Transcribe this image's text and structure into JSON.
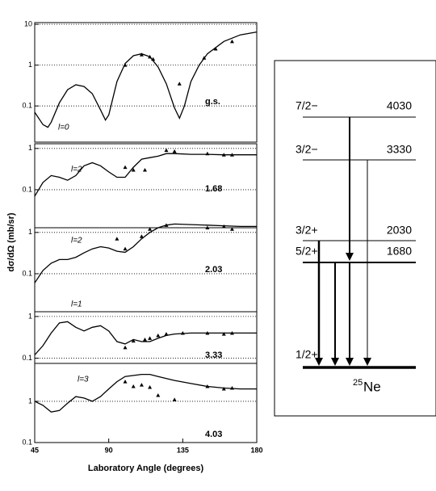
{
  "chart_data": [
    {
      "type": "line",
      "label": "g.s.",
      "annotation": "l=0",
      "log_y": true,
      "grid": true,
      "color": "#000000",
      "ylabel": "dσ/dΩ (mb/sr)",
      "xlim": [
        45,
        180
      ],
      "ylim": [
        0.013,
        11
      ],
      "yticks": [
        0.1,
        1,
        10
      ],
      "x": [
        45,
        50,
        53,
        55,
        60,
        65,
        70,
        75,
        80,
        85,
        88,
        90,
        95,
        100,
        105,
        110,
        115,
        120,
        125,
        130,
        133,
        136,
        140,
        145,
        150,
        160,
        170,
        180
      ],
      "values": [
        0.07,
        0.035,
        0.03,
        0.04,
        0.12,
        0.25,
        0.33,
        0.3,
        0.2,
        0.08,
        0.045,
        0.06,
        0.4,
        1.1,
        1.7,
        1.9,
        1.6,
        0.9,
        0.35,
        0.09,
        0.05,
        0.1,
        0.4,
        1.0,
        1.9,
        3.8,
        5.5,
        6.5
      ],
      "points_x": [
        100,
        110,
        115,
        117,
        133,
        148,
        155,
        165
      ],
      "points_values": [
        1.0,
        1.8,
        1.6,
        1.4,
        0.35,
        1.5,
        2.5,
        3.8
      ]
    },
    {
      "type": "line",
      "label": "1.68",
      "annotation": "l=2",
      "log_y": true,
      "grid": true,
      "color": "#000000",
      "xlim": [
        45,
        180
      ],
      "ylim": [
        0.012,
        1.3
      ],
      "yticks": [
        0.1,
        1
      ],
      "x": [
        45,
        50,
        55,
        60,
        65,
        70,
        75,
        80,
        85,
        90,
        95,
        100,
        105,
        110,
        115,
        120,
        125,
        130,
        140,
        150,
        160,
        170,
        180
      ],
      "values": [
        0.07,
        0.15,
        0.22,
        0.2,
        0.17,
        0.22,
        0.38,
        0.45,
        0.38,
        0.27,
        0.2,
        0.2,
        0.35,
        0.55,
        0.6,
        0.65,
        0.75,
        0.75,
        0.72,
        0.72,
        0.7,
        0.7,
        0.7
      ],
      "points_x": [
        100,
        105,
        112,
        125,
        130,
        150,
        160,
        165
      ],
      "points_values": [
        0.35,
        0.3,
        0.3,
        0.9,
        0.85,
        0.75,
        0.7,
        0.7
      ]
    },
    {
      "type": "line",
      "label": "2.03",
      "annotation": "l=2",
      "log_y": true,
      "grid": true,
      "color": "#000000",
      "xlim": [
        45,
        180
      ],
      "ylim": [
        0.012,
        1.3
      ],
      "yticks": [
        0.1,
        1
      ],
      "x": [
        45,
        50,
        55,
        60,
        65,
        70,
        75,
        80,
        85,
        90,
        95,
        100,
        105,
        110,
        115,
        120,
        125,
        130,
        140,
        150,
        160,
        170,
        180
      ],
      "values": [
        0.06,
        0.12,
        0.18,
        0.22,
        0.22,
        0.25,
        0.32,
        0.4,
        0.45,
        0.42,
        0.35,
        0.33,
        0.45,
        0.7,
        1.0,
        1.3,
        1.5,
        1.6,
        1.55,
        1.5,
        1.45,
        1.4,
        1.4
      ],
      "points_x": [
        95,
        100,
        110,
        115,
        125,
        150,
        160,
        165
      ],
      "points_values": [
        0.7,
        0.4,
        0.8,
        1.2,
        1.5,
        1.3,
        1.4,
        1.2
      ]
    },
    {
      "type": "line",
      "label": "3.33",
      "annotation": "l=1",
      "log_y": true,
      "grid": true,
      "color": "#000000",
      "xlim": [
        45,
        180
      ],
      "ylim": [
        0.075,
        1.3
      ],
      "yticks": [
        0.1,
        1
      ],
      "x": [
        45,
        50,
        55,
        60,
        65,
        70,
        75,
        80,
        85,
        90,
        95,
        100,
        105,
        110,
        115,
        120,
        125,
        130,
        140,
        150,
        160,
        170,
        180
      ],
      "values": [
        0.12,
        0.2,
        0.4,
        0.7,
        0.75,
        0.55,
        0.45,
        0.55,
        0.6,
        0.45,
        0.25,
        0.22,
        0.28,
        0.25,
        0.25,
        0.3,
        0.35,
        0.38,
        0.4,
        0.4,
        0.4,
        0.4,
        0.4
      ],
      "points_x": [
        100,
        105,
        112,
        115,
        120,
        125,
        135,
        150,
        160,
        165
      ],
      "points_values": [
        0.18,
        0.26,
        0.28,
        0.3,
        0.35,
        0.38,
        0.4,
        0.4,
        0.38,
        0.4
      ]
    },
    {
      "type": "line",
      "label": "4.03",
      "annotation": "l=3",
      "log_y": true,
      "grid": true,
      "color": "#000000",
      "xlabel": "Laboratory Angle (degrees)",
      "xlim": [
        45,
        180
      ],
      "ylim": [
        0.1,
        8.3
      ],
      "yticks": [
        0.1,
        1
      ],
      "xticks": [
        45,
        90,
        135,
        180
      ],
      "x": [
        45,
        50,
        55,
        60,
        65,
        70,
        75,
        80,
        85,
        90,
        95,
        100,
        110,
        115,
        120,
        130,
        140,
        150,
        160,
        170,
        180
      ],
      "values": [
        1.0,
        0.8,
        0.55,
        0.6,
        0.9,
        1.3,
        1.2,
        1.0,
        1.3,
        2.0,
        3.0,
        4.0,
        4.5,
        4.5,
        4.0,
        3.2,
        2.7,
        2.3,
        2.1,
        2.0,
        2.0
      ],
      "points_x": [
        100,
        105,
        110,
        115,
        120,
        130,
        150,
        160,
        165
      ],
      "points_values": [
        3.0,
        2.3,
        2.5,
        2.2,
        1.4,
        1.1,
        2.3,
        2.0,
        2.1
      ]
    }
  ],
  "level_scheme": {
    "levels": [
      {
        "spin": "7/2−",
        "energy": 4030
      },
      {
        "spin": "3/2−",
        "energy": 3330
      },
      {
        "spin": "3/2+",
        "energy": 2030
      },
      {
        "spin": "5/2+",
        "energy": 1680
      },
      {
        "spin": "1/2+"
      }
    ],
    "mass_number": "25",
    "nucleus": "Ne"
  }
}
